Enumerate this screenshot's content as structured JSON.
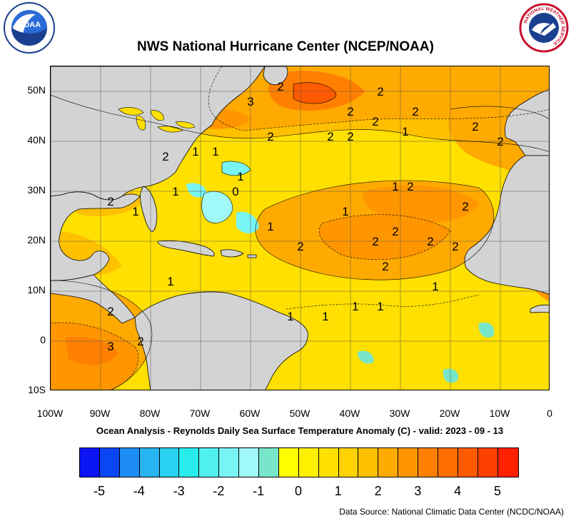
{
  "title": "NWS National Hurricane Center (NCEP/NOAA)",
  "subtitle": "Ocean Analysis - Reynolds Daily Sea Surface Temperature Anomaly (C) - valid: 2023 - 09 - 13",
  "source": "Data Source: National Climatic Data Center (NCDC/NOAA)",
  "logos": {
    "noaa_text": "NOAA",
    "nws_text": "NATIONAL WEATHER SERVICE"
  },
  "lat_labels": [
    "50N",
    "40N",
    "30N",
    "20N",
    "10N",
    "0",
    "10S"
  ],
  "lon_labels": [
    "100W",
    "90W",
    "80W",
    "70W",
    "60W",
    "50W",
    "40W",
    "30W",
    "20W",
    "10W",
    "0"
  ],
  "colorbar": {
    "labels": [
      "-5",
      "-4",
      "-3",
      "-2",
      "-1",
      "0",
      "1",
      "2",
      "3",
      "4",
      "5"
    ],
    "colors": [
      "#0a14f5",
      "#0a46f5",
      "#1e8cf5",
      "#28b4f0",
      "#28d2f0",
      "#28ecec",
      "#50f0f0",
      "#78f4f4",
      "#a0f8f8",
      "#78e6c8",
      "#ffff00",
      "#fff000",
      "#ffe000",
      "#ffd200",
      "#ffc000",
      "#ffaa00",
      "#ff9600",
      "#ff8000",
      "#ff6e00",
      "#ff5a00",
      "#ff4000",
      "#ff2000"
    ]
  },
  "contour_labels": [
    {
      "text": "2",
      "lon": -34,
      "lat": 50
    },
    {
      "text": "2",
      "lon": -40,
      "lat": 46
    },
    {
      "text": "2",
      "lon": -35,
      "lat": 44
    },
    {
      "text": "2",
      "lon": -27,
      "lat": 46
    },
    {
      "text": "2",
      "lon": -15,
      "lat": 43
    },
    {
      "text": "2",
      "lon": -10,
      "lat": 40
    },
    {
      "text": "2",
      "lon": -40,
      "lat": 41
    },
    {
      "text": "2",
      "lon": -44,
      "lat": 41
    },
    {
      "text": "2",
      "lon": -56,
      "lat": 41
    },
    {
      "text": "3",
      "lon": -60,
      "lat": 48
    },
    {
      "text": "2",
      "lon": -54,
      "lat": 51
    },
    {
      "text": "1",
      "lon": -29,
      "lat": 42
    },
    {
      "text": "1",
      "lon": -71,
      "lat": 38
    },
    {
      "text": "1",
      "lon": -67,
      "lat": 38
    },
    {
      "text": "2",
      "lon": -77,
      "lat": 37
    },
    {
      "text": "1",
      "lon": -62,
      "lat": 33
    },
    {
      "text": "1",
      "lon": -75,
      "lat": 30
    },
    {
      "text": "0",
      "lon": -63,
      "lat": 30
    },
    {
      "text": "1",
      "lon": -31,
      "lat": 31
    },
    {
      "text": "2",
      "lon": -28,
      "lat": 31
    },
    {
      "text": "2",
      "lon": -88,
      "lat": 28
    },
    {
      "text": "1",
      "lon": -83,
      "lat": 26
    },
    {
      "text": "2",
      "lon": -17,
      "lat": 27
    },
    {
      "text": "1",
      "lon": -41,
      "lat": 26
    },
    {
      "text": "1",
      "lon": -56,
      "lat": 23
    },
    {
      "text": "2",
      "lon": -31,
      "lat": 22
    },
    {
      "text": "2",
      "lon": -35,
      "lat": 20
    },
    {
      "text": "2",
      "lon": -24,
      "lat": 20
    },
    {
      "text": "2",
      "lon": -19,
      "lat": 19
    },
    {
      "text": "2",
      "lon": -50,
      "lat": 19
    },
    {
      "text": "2",
      "lon": -33,
      "lat": 15
    },
    {
      "text": "1",
      "lon": -76,
      "lat": 12
    },
    {
      "text": "1",
      "lon": -23,
      "lat": 11
    },
    {
      "text": "2",
      "lon": -88,
      "lat": 6
    },
    {
      "text": "1",
      "lon": -34,
      "lat": 7
    },
    {
      "text": "1",
      "lon": -39,
      "lat": 7
    },
    {
      "text": "1",
      "lon": -45,
      "lat": 5
    },
    {
      "text": "1",
      "lon": -52,
      "lat": 5
    },
    {
      "text": "2",
      "lon": -82,
      "lat": 0
    },
    {
      "text": "3",
      "lon": -88,
      "lat": -1
    }
  ]
}
